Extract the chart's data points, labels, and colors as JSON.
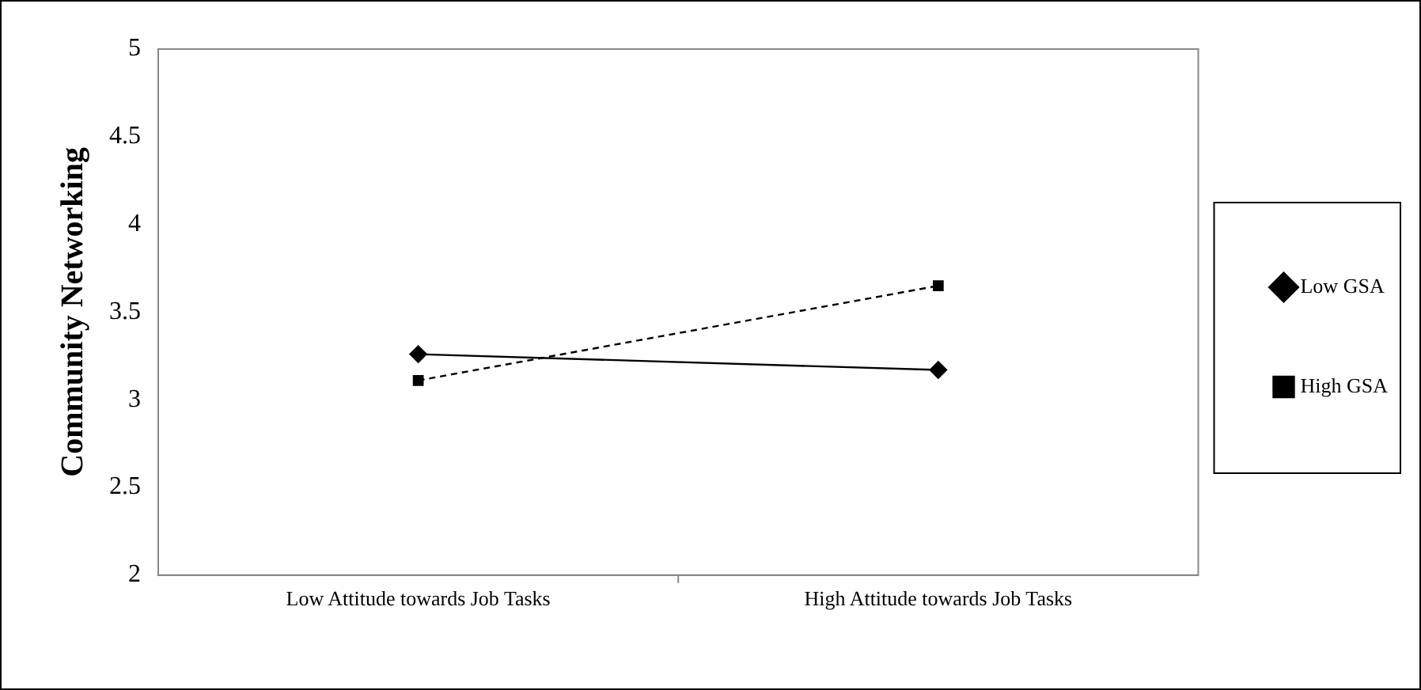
{
  "chart_data": {
    "type": "line",
    "ylabel": "Community Networking",
    "categories": [
      "Low Attitude towards Job Tasks",
      "High Attitude towards Job Tasks"
    ],
    "series": [
      {
        "name": "Low GSA",
        "color": "#000000",
        "values": [
          3.26,
          3.17
        ],
        "marker": "diamond",
        "line_style": "solid"
      },
      {
        "name": "High GSA",
        "color": "#000000",
        "values": [
          3.11,
          3.65
        ],
        "marker": "square",
        "line_style": "dashed"
      }
    ],
    "ylim": [
      2,
      5
    ],
    "yticks": [
      2,
      2.5,
      3,
      3.5,
      4,
      4.5,
      5
    ],
    "grid": false,
    "legend": "right"
  }
}
